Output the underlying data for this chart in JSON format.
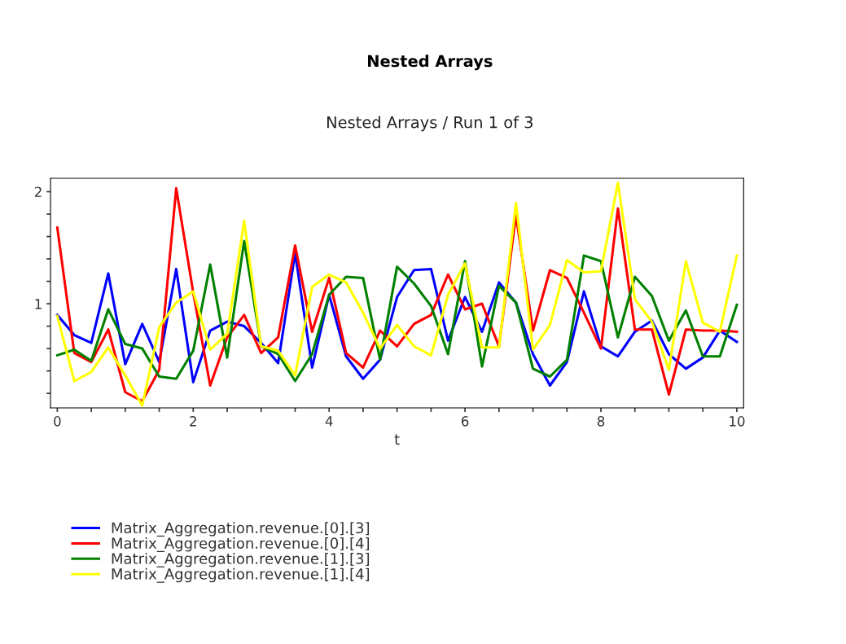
{
  "chart_data": {
    "type": "line",
    "title": "Nested Arrays",
    "subtitle": "Nested Arrays / Run 1 of 3",
    "xlabel": "t",
    "x": [
      0,
      0.25,
      0.5,
      0.75,
      1,
      1.25,
      1.5,
      1.75,
      2,
      2.25,
      2.5,
      2.75,
      3,
      3.25,
      3.5,
      3.75,
      4,
      4.25,
      4.5,
      4.75,
      5,
      5.25,
      5.5,
      5.75,
      6,
      6.25,
      6.5,
      6.75,
      7,
      7.25,
      7.5,
      7.75,
      8,
      8.25,
      8.5,
      8.75,
      9,
      9.25,
      9.5,
      9.75,
      10
    ],
    "series": [
      {
        "name": "Matrix_Aggregation.revenue.[0].[3]",
        "color": "#0000ff",
        "values": [
          0.9,
          0.72,
          0.65,
          1.27,
          0.46,
          0.82,
          0.48,
          1.31,
          0.3,
          0.76,
          0.84,
          0.8,
          0.65,
          0.47,
          1.45,
          0.43,
          1.08,
          0.53,
          0.33,
          0.5,
          1.06,
          1.3,
          1.31,
          0.67,
          1.06,
          0.75,
          1.19,
          1.01,
          0.55,
          0.27,
          0.48,
          1.11,
          0.62,
          0.53,
          0.75,
          0.85,
          0.55,
          0.42,
          0.52,
          0.76,
          0.66
        ]
      },
      {
        "name": "Matrix_Aggregation.revenue.[0].[4]",
        "color": "#ff0000",
        "values": [
          1.68,
          0.56,
          0.48,
          0.77,
          0.21,
          0.13,
          0.41,
          2.03,
          1.1,
          0.27,
          0.7,
          0.9,
          0.56,
          0.7,
          1.52,
          0.75,
          1.23,
          0.56,
          0.43,
          0.76,
          0.62,
          0.82,
          0.9,
          1.26,
          0.95,
          1.0,
          0.62,
          1.79,
          0.76,
          1.3,
          1.23,
          0.92,
          0.6,
          1.85,
          0.77,
          0.77,
          0.19,
          0.77,
          0.76,
          0.76,
          0.75
        ]
      },
      {
        "name": "Matrix_Aggregation.revenue.[1].[3]",
        "color": "#008000",
        "values": [
          0.54,
          0.59,
          0.49,
          0.95,
          0.64,
          0.6,
          0.35,
          0.33,
          0.58,
          1.35,
          0.52,
          1.56,
          0.62,
          0.55,
          0.31,
          0.55,
          1.08,
          1.24,
          1.23,
          0.5,
          1.33,
          1.18,
          0.98,
          0.55,
          1.38,
          0.44,
          1.16,
          1.01,
          0.42,
          0.35,
          0.5,
          1.43,
          1.38,
          0.7,
          1.24,
          1.07,
          0.67,
          0.94,
          0.53,
          0.53,
          0.99
        ]
      },
      {
        "name": "Matrix_Aggregation.revenue.[1].[4]",
        "color": "#ffff00",
        "values": [
          0.89,
          0.31,
          0.39,
          0.61,
          0.36,
          0.09,
          0.79,
          1.01,
          1.11,
          0.59,
          0.73,
          1.74,
          0.62,
          0.58,
          0.36,
          1.15,
          1.26,
          1.19,
          0.92,
          0.6,
          0.81,
          0.62,
          0.54,
          1.08,
          1.36,
          0.61,
          0.61,
          1.9,
          0.59,
          0.81,
          1.39,
          1.28,
          1.29,
          2.08,
          1.04,
          0.84,
          0.41,
          1.38,
          0.83,
          0.75,
          1.43
        ]
      }
    ],
    "xlim": [
      -0.1,
      10.1
    ],
    "ylim": [
      0.07,
      2.12
    ],
    "xticks": [
      0,
      {
        "value": 0.5,
        "label": null
      },
      {
        "value": 1,
        "label": null
      },
      {
        "value": 1.5,
        "label": null
      },
      2,
      {
        "value": 2.5,
        "label": null
      },
      {
        "value": 3,
        "label": null
      },
      {
        "value": 3.5,
        "label": null
      },
      4,
      {
        "value": 4.5,
        "label": null
      },
      {
        "value": 5,
        "label": null
      },
      {
        "value": 5.5,
        "label": null
      },
      6,
      {
        "value": 6.5,
        "label": null
      },
      {
        "value": 7,
        "label": null
      },
      {
        "value": 7.5,
        "label": null
      },
      8,
      {
        "value": 8.5,
        "label": null
      },
      {
        "value": 9,
        "label": null
      },
      {
        "value": 9.5,
        "label": null
      },
      10
    ],
    "yticks": [
      {
        "value": 0.2,
        "label": null
      },
      {
        "value": 0.4,
        "label": null
      },
      {
        "value": 0.6,
        "label": null
      },
      {
        "value": 0.8,
        "label": null
      },
      1,
      {
        "value": 1.2,
        "label": null
      },
      {
        "value": 1.4,
        "label": null
      },
      {
        "value": 1.6,
        "label": null
      },
      {
        "value": 1.8,
        "label": null
      },
      2
    ],
    "grid": false,
    "legend": "bottom left",
    "marker": "none",
    "line_style": "solid"
  }
}
